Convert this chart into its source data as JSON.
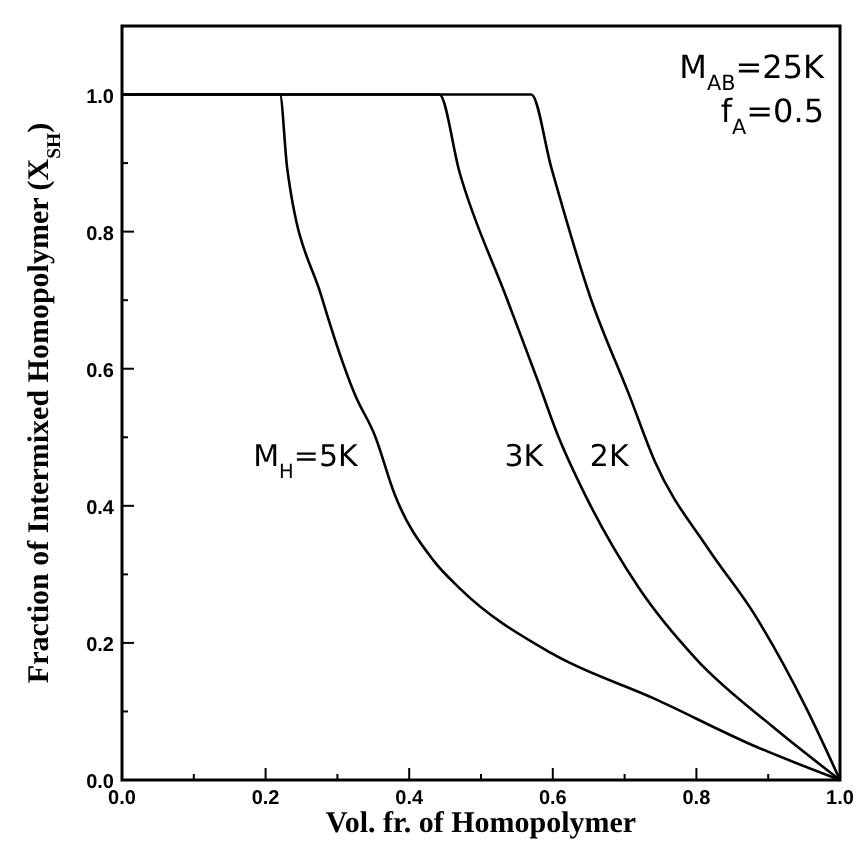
{
  "chart_data": {
    "type": "line",
    "xlabel": "Vol. fr. of Homopolymer",
    "ylabel": "Fraction of Intermixed Homopolymer (X$_{SH}$)",
    "annotations": [
      "M$_{AB}$=25K",
      "f$_{A}$=0.5"
    ],
    "xlim": [
      0,
      1
    ],
    "ylim": [
      0,
      1.1
    ],
    "xticks": [
      {
        "value": 0,
        "label": "0.0"
      },
      {
        "value": 0.1,
        "label": null
      },
      {
        "value": 0.2,
        "label": "0.2"
      },
      {
        "value": 0.3,
        "label": null
      },
      {
        "value": 0.4,
        "label": "0.4"
      },
      {
        "value": 0.5,
        "label": null
      },
      {
        "value": 0.6,
        "label": "0.6"
      },
      {
        "value": 0.7,
        "label": null
      },
      {
        "value": 0.8,
        "label": "0.8"
      },
      {
        "value": 0.9,
        "label": null
      },
      {
        "value": 1,
        "label": "1.0"
      }
    ],
    "yticks": [
      {
        "value": 0,
        "label": "0.0"
      },
      {
        "value": 0.1,
        "label": null
      },
      {
        "value": 0.2,
        "label": "0.2"
      },
      {
        "value": 0.3,
        "label": null
      },
      {
        "value": 0.4,
        "label": "0.4"
      },
      {
        "value": 0.5,
        "label": null
      },
      {
        "value": 0.6,
        "label": "0.6"
      },
      {
        "value": 0.7,
        "label": null
      },
      {
        "value": 0.8,
        "label": "0.8"
      },
      {
        "value": 0.9,
        "label": null
      },
      {
        "value": 1,
        "label": "1.0"
      }
    ],
    "marker": "none",
    "line_style": "solid",
    "series": [
      {
        "name": "M$_{H}$=5K",
        "color": "#000000",
        "x": [
          0,
          0.22,
          0.23,
          0.278,
          0.325,
          0.352,
          0.38,
          0.434,
          0.47,
          0.598,
          0.743,
          0.88,
          1
        ],
        "values": [
          1,
          1,
          0.893,
          0.705,
          0.561,
          0.503,
          0.416,
          0.32,
          0.28,
          0.185,
          0.118,
          0.05,
          0
        ]
      },
      {
        "name": "3K",
        "color": "#000000",
        "x": [
          0,
          0.442,
          0.47,
          0.535,
          0.58,
          0.607,
          0.645,
          0.72,
          0.8,
          0.906,
          1
        ],
        "values": [
          1,
          1,
          0.887,
          0.705,
          0.58,
          0.503,
          0.416,
          0.28,
          0.176,
          0.078,
          0
        ]
      },
      {
        "name": "2K",
        "color": "#000000",
        "x": [
          0,
          0.57,
          0.598,
          0.652,
          0.707,
          0.742,
          0.816,
          0.88,
          0.952,
          1
        ],
        "values": [
          1,
          1,
          0.893,
          0.705,
          0.56,
          0.465,
          0.338,
          0.243,
          0.107,
          0
        ]
      }
    ]
  }
}
